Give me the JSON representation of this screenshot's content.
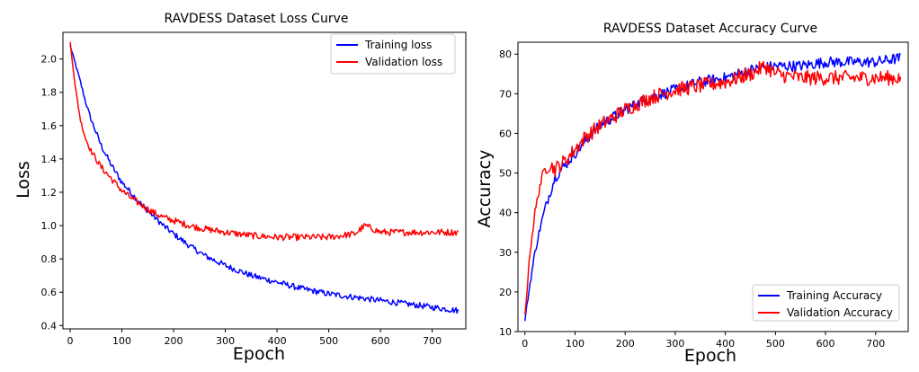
{
  "chart_data": [
    {
      "type": "line",
      "title": "RAVDESS Dataset Loss Curve",
      "xlabel": "Epoch",
      "ylabel": "Loss",
      "xlim": [
        -14,
        765
      ],
      "ylim": [
        0.38,
        2.16
      ],
      "xticks": [
        0,
        100,
        200,
        300,
        400,
        500,
        600,
        700
      ],
      "yticks": [
        0.4,
        0.6,
        0.8,
        1.0,
        1.2,
        1.4,
        1.6,
        1.8,
        2.0
      ],
      "xtick_labels": [
        "0",
        "100",
        "200",
        "300",
        "400",
        "500",
        "600",
        "700"
      ],
      "ytick_labels": [
        "0.4",
        "0.6",
        "0.8",
        "1.0",
        "1.2",
        "1.4",
        "1.6",
        "1.8",
        "2.0"
      ],
      "grid": false,
      "legend_position": "upper-right",
      "series": [
        {
          "name": "Training loss",
          "color": "#0000ff",
          "x": [
            0,
            10,
            20,
            30,
            40,
            50,
            60,
            70,
            80,
            90,
            100,
            120,
            140,
            160,
            180,
            200,
            230,
            260,
            300,
            350,
            400,
            450,
            500,
            550,
            600,
            650,
            700,
            750
          ],
          "y": [
            2.08,
            1.97,
            1.86,
            1.74,
            1.64,
            1.56,
            1.48,
            1.42,
            1.36,
            1.31,
            1.26,
            1.19,
            1.12,
            1.06,
            1.0,
            0.95,
            0.88,
            0.82,
            0.76,
            0.7,
            0.66,
            0.62,
            0.59,
            0.57,
            0.55,
            0.53,
            0.51,
            0.49
          ]
        },
        {
          "name": "Validation loss",
          "color": "#ff0000",
          "x": [
            0,
            10,
            20,
            30,
            40,
            50,
            60,
            80,
            100,
            120,
            140,
            160,
            180,
            200,
            230,
            260,
            300,
            350,
            400,
            450,
            500,
            550,
            570,
            600,
            650,
            700,
            750
          ],
          "y": [
            2.1,
            1.83,
            1.63,
            1.52,
            1.45,
            1.4,
            1.35,
            1.28,
            1.21,
            1.16,
            1.12,
            1.08,
            1.05,
            1.03,
            1.0,
            0.98,
            0.96,
            0.94,
            0.93,
            0.93,
            0.93,
            0.95,
            1.0,
            0.96,
            0.96,
            0.96,
            0.96
          ]
        }
      ]
    },
    {
      "type": "line",
      "title": "RAVDESS Dataset Accuracy Curve",
      "xlabel": "Epoch",
      "ylabel": "Accuracy",
      "xlim": [
        -14,
        765
      ],
      "ylim": [
        10,
        83
      ],
      "xticks": [
        0,
        100,
        200,
        300,
        400,
        500,
        600,
        700
      ],
      "yticks": [
        10,
        20,
        30,
        40,
        50,
        60,
        70,
        80
      ],
      "xtick_labels": [
        "0",
        "100",
        "200",
        "300",
        "400",
        "500",
        "600",
        "700"
      ],
      "ytick_labels": [
        "10",
        "20",
        "30",
        "40",
        "50",
        "60",
        "70",
        "80"
      ],
      "grid": false,
      "legend_position": "lower-right",
      "series": [
        {
          "name": "Training Accuracy",
          "color": "#0000ff",
          "x": [
            0,
            10,
            20,
            30,
            40,
            50,
            60,
            80,
            100,
            120,
            150,
            200,
            250,
            300,
            350,
            400,
            450,
            500,
            550,
            600,
            650,
            700,
            750
          ],
          "y": [
            13,
            22,
            30,
            36,
            41,
            45,
            49,
            52,
            55,
            58,
            62,
            66,
            69,
            71,
            73,
            74,
            76,
            77,
            77,
            78,
            78,
            78,
            79
          ]
        },
        {
          "name": "Validation Accuracy",
          "color": "#ff0000",
          "x": [
            0,
            10,
            20,
            30,
            40,
            50,
            60,
            80,
            100,
            120,
            150,
            200,
            250,
            300,
            350,
            400,
            450,
            480,
            500,
            550,
            600,
            650,
            700,
            750
          ],
          "y": [
            14,
            30,
            40,
            47,
            51,
            52,
            51,
            53,
            56,
            59,
            62,
            66,
            69,
            71,
            72,
            73,
            75,
            77,
            75,
            74,
            74,
            74,
            74,
            74
          ]
        }
      ]
    }
  ]
}
